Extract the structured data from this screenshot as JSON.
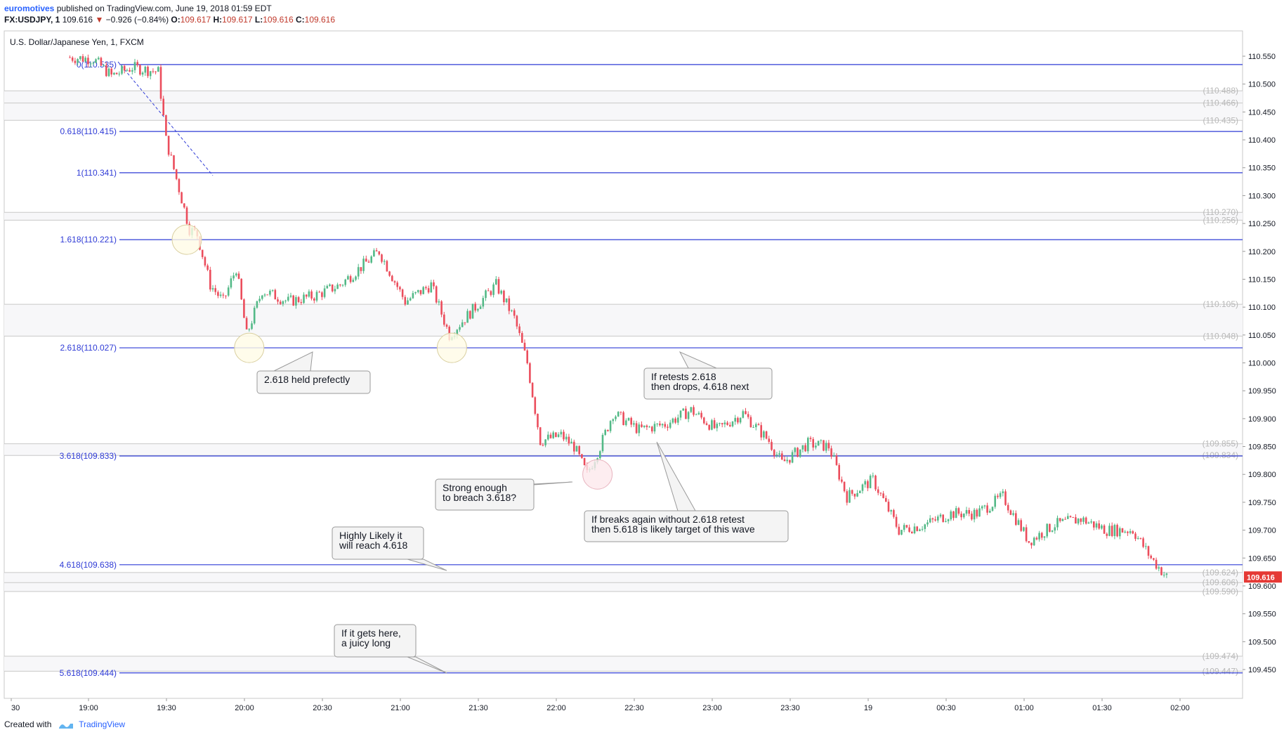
{
  "header": {
    "author": "euromotives",
    "published": "published on TradingView.com, June 19, 2018 01:59 EDT",
    "symbol": "FX:USDJPY, 1",
    "last": "109.616",
    "change": "−0.926 (−0.84%)",
    "o_label": "O:",
    "o_value": "109.617",
    "h_label": "H:",
    "h_value": "109.617",
    "l_label": "L:",
    "l_value": "109.616",
    "c_label": "C:",
    "c_value": "109.616"
  },
  "footer": {
    "created_with": "Created with",
    "brand": "TradingView"
  },
  "chart_data": {
    "type": "candlestick",
    "title": "U.S. Dollar/Japanese Yen, 1, FXCM",
    "ylim": [
      109.415,
      110.59
    ],
    "y_ticks": [
      110.55,
      110.5,
      110.45,
      110.4,
      110.35,
      110.3,
      110.25,
      110.2,
      110.15,
      110.1,
      110.05,
      110.0,
      109.95,
      109.9,
      109.85,
      109.8,
      109.75,
      109.7,
      109.65,
      109.6,
      109.55,
      109.5,
      109.45
    ],
    "y_tick_labels": [
      "110.550",
      "110.500",
      "110.450",
      "110.400",
      "110.350",
      "110.300",
      "110.250",
      "110.200",
      "110.150",
      "110.100",
      "110.050",
      "110.000",
      "109.950",
      "109.900",
      "109.850",
      "109.800",
      "109.750",
      "109.700",
      "109.650",
      "109.600",
      "109.550",
      "109.500",
      "109.450"
    ],
    "x_tick_labels": [
      "30",
      "19:00",
      "19:30",
      "20:00",
      "20:30",
      "21:00",
      "21:30",
      "22:00",
      "22:30",
      "23:00",
      "23:30",
      "19",
      "00:30",
      "01:00",
      "01:30",
      "02:00"
    ],
    "current_price": 109.616,
    "current_price_label": "109.616",
    "fib_levels": [
      {
        "label": "0(110.535)",
        "value": 110.535
      },
      {
        "label": "0.618(110.415)",
        "value": 110.415
      },
      {
        "label": "1(110.341)",
        "value": 110.341
      },
      {
        "label": "1.618(110.221)",
        "value": 110.221
      },
      {
        "label": "2.618(110.027)",
        "value": 110.027
      },
      {
        "label": "3.618(109.833)",
        "value": 109.833
      },
      {
        "label": "4.618(109.638)",
        "value": 109.638
      },
      {
        "label": "5.618(109.444)",
        "value": 109.444
      }
    ],
    "gray_levels": [
      {
        "label": "(110.488)",
        "value": 110.488
      },
      {
        "label": "(110.466)",
        "value": 110.466
      },
      {
        "label": "(110.435)",
        "value": 110.435
      },
      {
        "label": "(110.270)",
        "value": 110.27
      },
      {
        "label": "(110.256)",
        "value": 110.256
      },
      {
        "label": "(110.105)",
        "value": 110.105
      },
      {
        "label": "(110.048)",
        "value": 110.048
      },
      {
        "label": "(109.855)",
        "value": 109.855
      },
      {
        "label": "(109.834)",
        "value": 109.834
      },
      {
        "label": "(109.624)",
        "value": 109.624
      },
      {
        "label": "(109.606)",
        "value": 109.606
      },
      {
        "label": "(109.590)",
        "value": 109.59
      },
      {
        "label": "(109.474)",
        "value": 109.474
      },
      {
        "label": "(109.447)",
        "value": 109.447
      }
    ],
    "annotations": [
      {
        "lines": [
          "2.618 held prefectly"
        ]
      },
      {
        "lines": [
          "If retests 2.618",
          "then drops, 4.618 next"
        ]
      },
      {
        "lines": [
          "Strong enough",
          "to breach 3.618?"
        ]
      },
      {
        "lines": [
          "If breaks again  without 2.618 retest",
          "then 5.618 is likely target of this wave"
        ]
      },
      {
        "lines": [
          "Highly Likely it",
          "will reach 4.618"
        ]
      },
      {
        "lines": [
          "If it gets here,",
          "a juicy long"
        ]
      }
    ],
    "price_path": [
      {
        "t": "18:55",
        "p": 110.548
      },
      {
        "t": "19:05",
        "p": 110.545
      },
      {
        "t": "19:12",
        "p": 110.515
      },
      {
        "t": "19:20",
        "p": 110.53
      },
      {
        "t": "19:30",
        "p": 110.522
      },
      {
        "t": "19:33",
        "p": 110.4
      },
      {
        "t": "19:37",
        "p": 110.33
      },
      {
        "t": "19:42",
        "p": 110.24
      },
      {
        "t": "19:45",
        "p": 110.23
      },
      {
        "t": "19:50",
        "p": 110.14
      },
      {
        "t": "19:55",
        "p": 110.11
      },
      {
        "t": "20:00",
        "p": 110.17
      },
      {
        "t": "20:04",
        "p": 110.05
      },
      {
        "t": "20:10",
        "p": 110.13
      },
      {
        "t": "20:20",
        "p": 110.11
      },
      {
        "t": "20:30",
        "p": 110.12
      },
      {
        "t": "20:40",
        "p": 110.14
      },
      {
        "t": "20:50",
        "p": 110.18
      },
      {
        "t": "20:55",
        "p": 110.2
      },
      {
        "t": "21:05",
        "p": 110.11
      },
      {
        "t": "21:15",
        "p": 110.14
      },
      {
        "t": "21:22",
        "p": 110.05
      },
      {
        "t": "21:30",
        "p": 110.09
      },
      {
        "t": "21:40",
        "p": 110.14
      },
      {
        "t": "21:47",
        "p": 110.08
      },
      {
        "t": "21:52",
        "p": 110.0
      },
      {
        "t": "21:57",
        "p": 109.86
      },
      {
        "t": "22:05",
        "p": 109.87
      },
      {
        "t": "22:10",
        "p": 109.85
      },
      {
        "t": "22:15",
        "p": 109.8
      },
      {
        "t": "22:20",
        "p": 109.85
      },
      {
        "t": "22:25",
        "p": 109.91
      },
      {
        "t": "22:35",
        "p": 109.88
      },
      {
        "t": "22:45",
        "p": 109.89
      },
      {
        "t": "22:55",
        "p": 109.915
      },
      {
        "t": "23:05",
        "p": 109.88
      },
      {
        "t": "23:15",
        "p": 109.91
      },
      {
        "t": "23:25",
        "p": 109.86
      },
      {
        "t": "23:30",
        "p": 109.82
      },
      {
        "t": "23:40",
        "p": 109.855
      },
      {
        "t": "23:48",
        "p": 109.85
      },
      {
        "t": "23:55",
        "p": 109.76
      },
      {
        "t": "00:05",
        "p": 109.79
      },
      {
        "t": "00:15",
        "p": 109.7
      },
      {
        "t": "00:25",
        "p": 109.71
      },
      {
        "t": "00:35",
        "p": 109.73
      },
      {
        "t": "00:45",
        "p": 109.73
      },
      {
        "t": "00:55",
        "p": 109.76
      },
      {
        "t": "01:05",
        "p": 109.68
      },
      {
        "t": "01:15",
        "p": 109.71
      },
      {
        "t": "01:25",
        "p": 109.72
      },
      {
        "t": "01:35",
        "p": 109.7
      },
      {
        "t": "01:45",
        "p": 109.7
      },
      {
        "t": "01:52",
        "p": 109.65
      },
      {
        "t": "01:58",
        "p": 109.616
      }
    ],
    "colors": {
      "fib_line": "#2f3bd6",
      "gray_line": "#c8c8c8",
      "up_candle": "#53b987",
      "down_candle": "#eb4d5c",
      "price_badge": "#e53935"
    }
  }
}
